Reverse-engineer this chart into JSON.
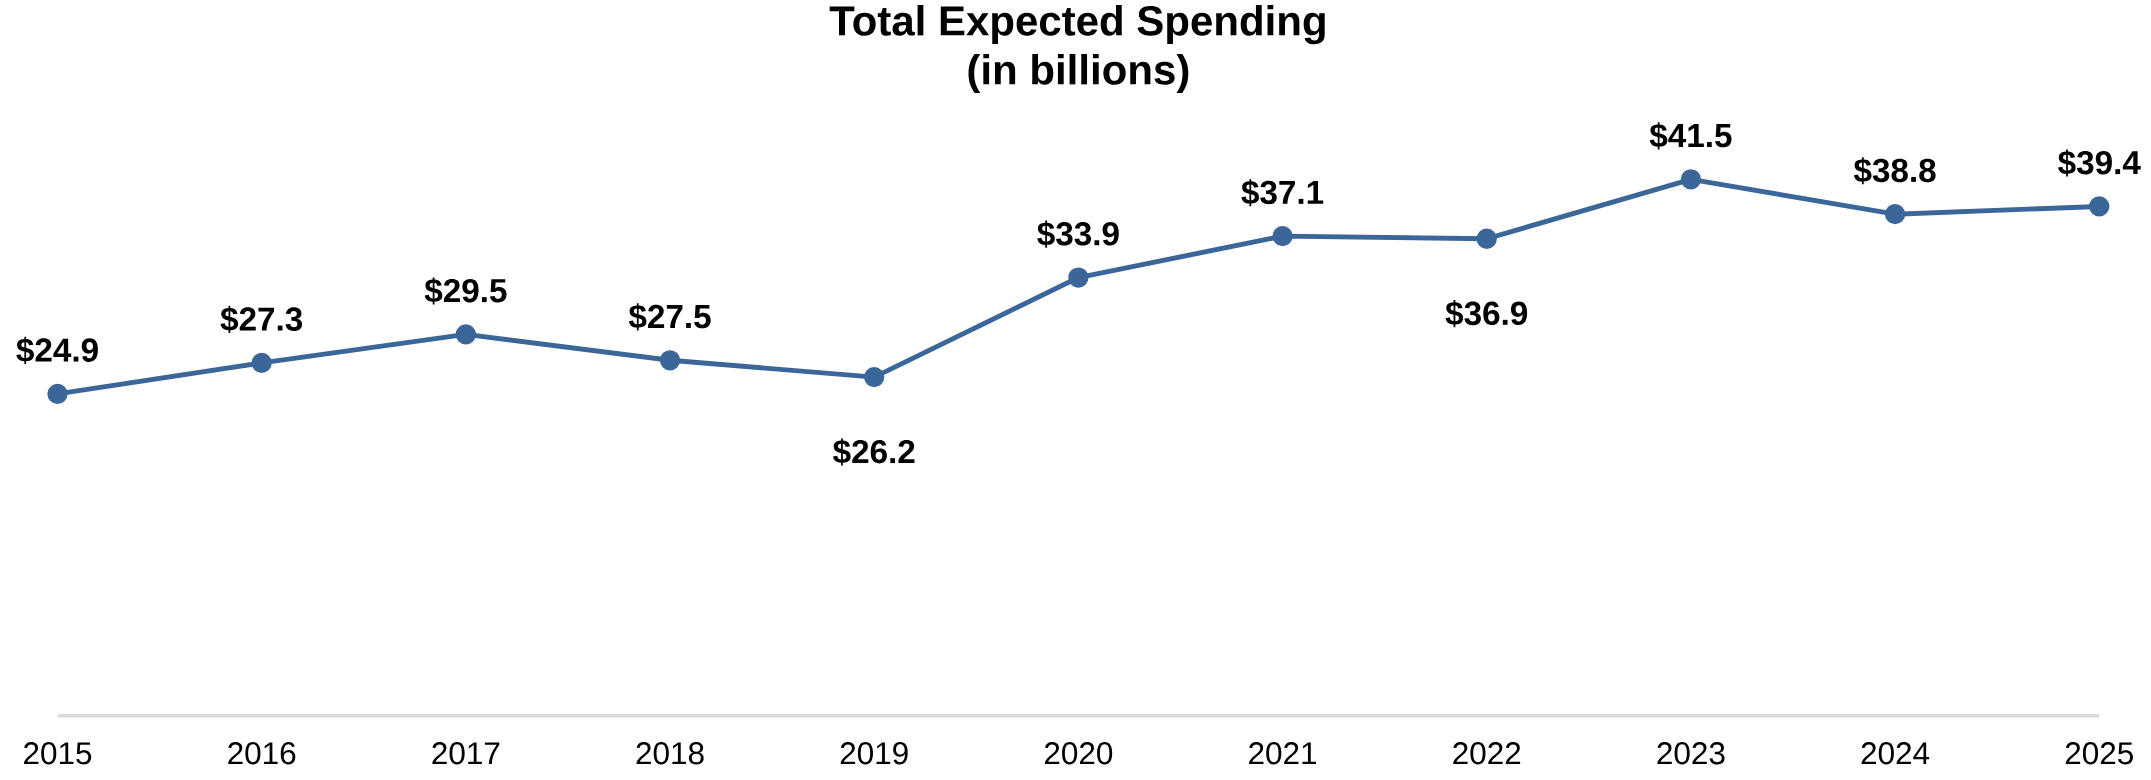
{
  "chart_data": {
    "type": "line",
    "title": "Total Expected Spending",
    "subtitle": "(in billions)",
    "categories": [
      "2015",
      "2016",
      "2017",
      "2018",
      "2019",
      "2020",
      "2021",
      "2022",
      "2023",
      "2024",
      "2025"
    ],
    "values": [
      24.9,
      27.3,
      29.5,
      27.5,
      26.2,
      33.9,
      37.1,
      36.9,
      41.5,
      38.8,
      39.4
    ],
    "value_labels": [
      "$24.9",
      "$27.3",
      "$29.5",
      "$27.5",
      "$26.2",
      "$33.9",
      "$37.1",
      "$36.9",
      "$41.5",
      "$38.8",
      "$39.4"
    ],
    "color": "#3a6699",
    "marker": "circle",
    "line_style": "solid"
  }
}
